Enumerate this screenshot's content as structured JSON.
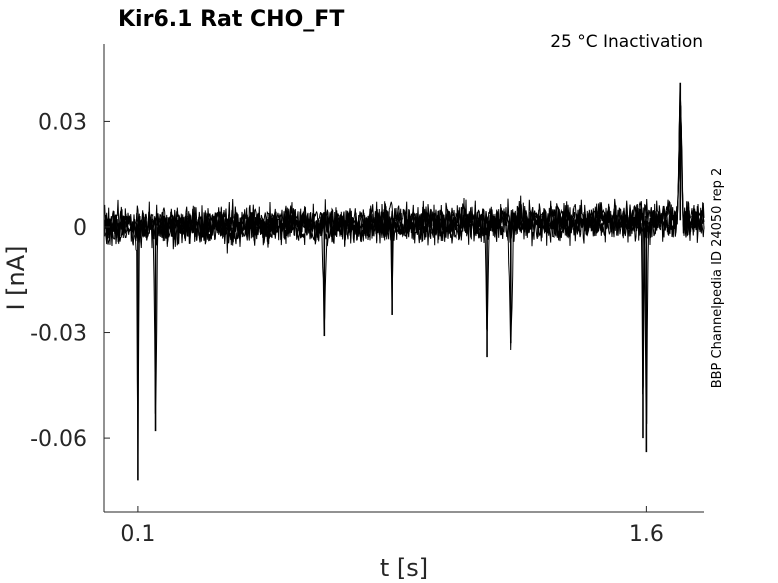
{
  "chart_data": {
    "type": "line",
    "title": "Kir6.1  Rat  CHO_FT",
    "condition": "25 °C  Inactivation",
    "side_note": "BBP Channelpedia ID 24050 rep 2",
    "xlabel": "t [s]",
    "ylabel": "I [nA]",
    "xlim": [
      0.0,
      1.77
    ],
    "ylim": [
      -0.081,
      0.052
    ],
    "xticks": [
      0.1,
      1.6
    ],
    "xtick_labels": [
      "0.1",
      "1.6"
    ],
    "yticks": [
      0.03,
      0,
      -0.03,
      -0.06
    ],
    "ytick_labels": [
      "0.03",
      "0",
      "-0.03",
      "-0.06"
    ],
    "grid": false,
    "series_style": {
      "color": "#000000",
      "description": "overlaid noisy current traces"
    },
    "noise_band": {
      "x": [
        0.0,
        1.77
      ],
      "center": [
        0.0,
        0.001,
        0.002
      ],
      "amplitude": 0.007
    },
    "events": [
      {
        "x": 0.1,
        "y": -0.072
      },
      {
        "x": 0.152,
        "y": -0.058
      },
      {
        "x": 0.65,
        "y": -0.031
      },
      {
        "x": 0.85,
        "y": -0.025
      },
      {
        "x": 1.13,
        "y": -0.037
      },
      {
        "x": 1.2,
        "y": -0.033
      },
      {
        "x": 1.59,
        "y": -0.06
      },
      {
        "x": 1.6,
        "y": -0.064
      },
      {
        "x": 1.7,
        "y": 0.041
      }
    ]
  }
}
